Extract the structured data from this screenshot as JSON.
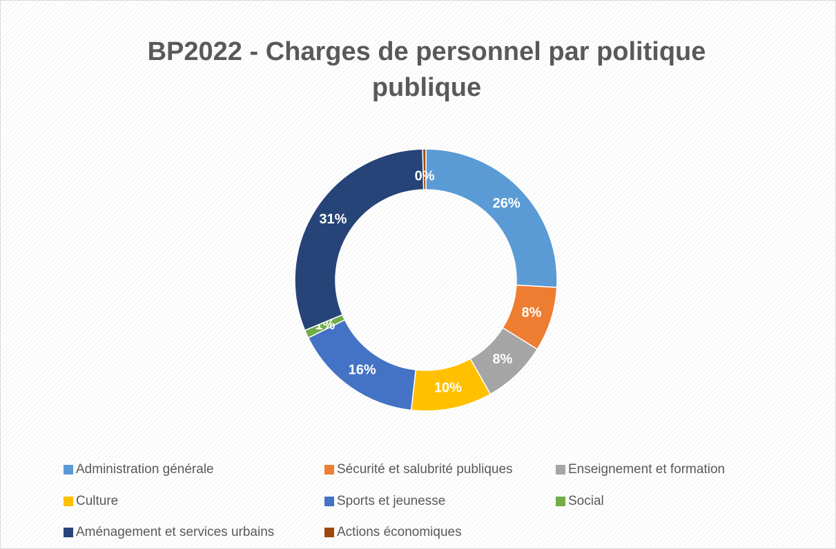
{
  "chart_data": {
    "type": "donut",
    "title": "BP2022 - Charges de personnel par politique publique",
    "categories": [
      "Administration générale",
      "Sécurité et salubrité publiques",
      "Enseignement et formation",
      "Culture",
      "Sports et jeunesse",
      "Social",
      "Aménagement et services urbains",
      "Actions économiques"
    ],
    "values": [
      26,
      8,
      8,
      10,
      16,
      1,
      31,
      0.4
    ],
    "value_labels": [
      "26%",
      "8%",
      "8%",
      "10%",
      "16%",
      "1%",
      "31%",
      "0%"
    ],
    "colors": [
      "#5b9bd5",
      "#ed7d31",
      "#a5a5a5",
      "#ffc000",
      "#4472c4",
      "#70ad47",
      "#264478",
      "#9e480e"
    ],
    "legend": "bottom"
  }
}
